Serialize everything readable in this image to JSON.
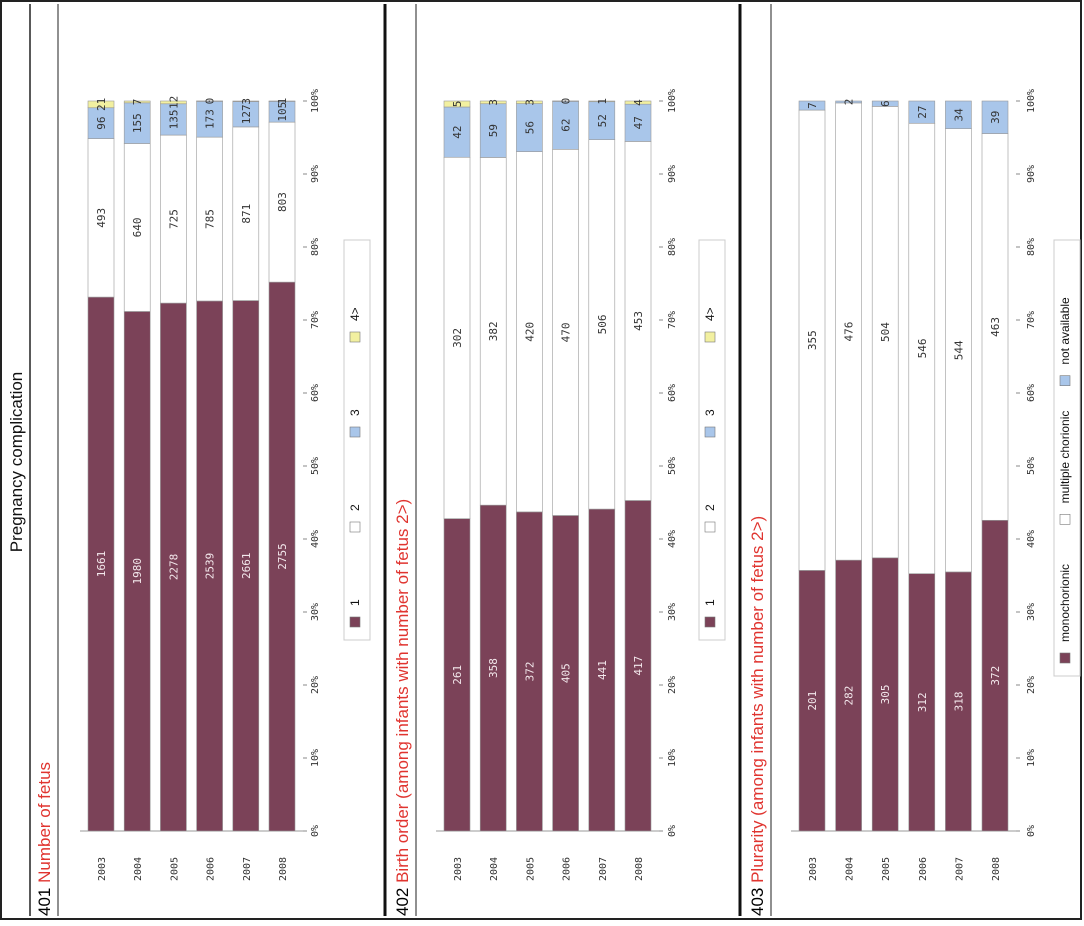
{
  "page_header": "Pregnancy complication",
  "colors": {
    "s1": "#7b4258",
    "s2": "#ffffff",
    "s3": "#a9c6ea",
    "s4": "#f2f0a0",
    "title_num": "#000000",
    "title_text": "#e0342f"
  },
  "chart_data": [
    {
      "type": "bar",
      "orientation": "horizontal",
      "stacked": "percent",
      "title_number": "401",
      "title_text": "Number of fetus",
      "categories": [
        "2003",
        "2004",
        "2005",
        "2006",
        "2007",
        "2008"
      ],
      "series": [
        {
          "name": "1",
          "values": [
            1661,
            1980,
            2278,
            2539,
            2661,
            2755
          ]
        },
        {
          "name": "2",
          "values": [
            493,
            640,
            725,
            785,
            871,
            803
          ]
        },
        {
          "name": "3",
          "values": [
            96,
            155,
            135,
            173,
            127,
            105
          ]
        },
        {
          "name": "4>",
          "values": [
            21,
            7,
            12,
            0,
            3,
            1
          ]
        }
      ],
      "label_text": [
        [
          "1661",
          "1980",
          "2278",
          "2539",
          "2661",
          "2755"
        ],
        [
          "493",
          "640",
          "725",
          "785",
          "871",
          "803"
        ],
        [
          "96",
          "155",
          "135",
          "173",
          "127",
          "105"
        ],
        [
          "21",
          "7",
          "12",
          "0",
          "3",
          "1"
        ]
      ],
      "xticks": [
        "0%",
        "10%",
        "20%",
        "30%",
        "40%",
        "50%",
        "60%",
        "70%",
        "80%",
        "90%",
        "100%"
      ],
      "xlim": [
        0,
        100
      ],
      "legend_position": "bottom"
    },
    {
      "type": "bar",
      "orientation": "horizontal",
      "stacked": "percent",
      "title_number": "402",
      "title_text": "Birth order (among infants with number of fetus 2>)",
      "categories": [
        "2003",
        "2004",
        "2005",
        "2006",
        "2007",
        "2008"
      ],
      "series": [
        {
          "name": "1",
          "values": [
            261,
            358,
            372,
            405,
            441,
            417
          ]
        },
        {
          "name": "2",
          "values": [
            302,
            382,
            420,
            470,
            506,
            453
          ]
        },
        {
          "name": "3",
          "values": [
            42,
            59,
            56,
            62,
            52,
            47
          ]
        },
        {
          "name": "4>",
          "values": [
            5,
            3,
            3,
            0,
            1,
            4
          ]
        }
      ],
      "label_text": [
        [
          "261",
          "358",
          "372",
          "405",
          "441",
          "417"
        ],
        [
          "302",
          "382",
          "420",
          "470",
          "506",
          "453"
        ],
        [
          "42",
          "59",
          "56",
          "62",
          "52",
          "47"
        ],
        [
          "5",
          "3",
          "3",
          "0",
          "1",
          "4"
        ]
      ],
      "xticks": [
        "0%",
        "10%",
        "20%",
        "30%",
        "40%",
        "50%",
        "60%",
        "70%",
        "80%",
        "90%",
        "100%"
      ],
      "xlim": [
        0,
        100
      ],
      "legend_position": "bottom"
    },
    {
      "type": "bar",
      "orientation": "horizontal",
      "stacked": "percent",
      "title_number": "403",
      "title_text": "Plurarity (among infants with number of fetus 2>)",
      "categories": [
        "2003",
        "2004",
        "2005",
        "2006",
        "2007",
        "2008"
      ],
      "series": [
        {
          "name": "monochorionic",
          "values": [
            201,
            282,
            305,
            312,
            318,
            372
          ]
        },
        {
          "name": "multiple chorionic",
          "values": [
            355,
            476,
            504,
            546,
            544,
            463
          ]
        },
        {
          "name": "not available",
          "values": [
            7,
            2,
            6,
            27,
            34,
            39
          ]
        }
      ],
      "label_text": [
        [
          "201",
          "282",
          "305",
          "312",
          "318",
          "372"
        ],
        [
          "355",
          "476",
          "504",
          "546",
          "544",
          "463"
        ],
        [
          "7",
          "2",
          "6",
          "27",
          "34",
          "39"
        ]
      ],
      "xticks": [
        "0%",
        "10%",
        "20%",
        "30%",
        "40%",
        "50%",
        "60%",
        "70%",
        "80%",
        "90%",
        "100%"
      ],
      "xlim": [
        0,
        100
      ],
      "legend_position": "bottom"
    }
  ]
}
